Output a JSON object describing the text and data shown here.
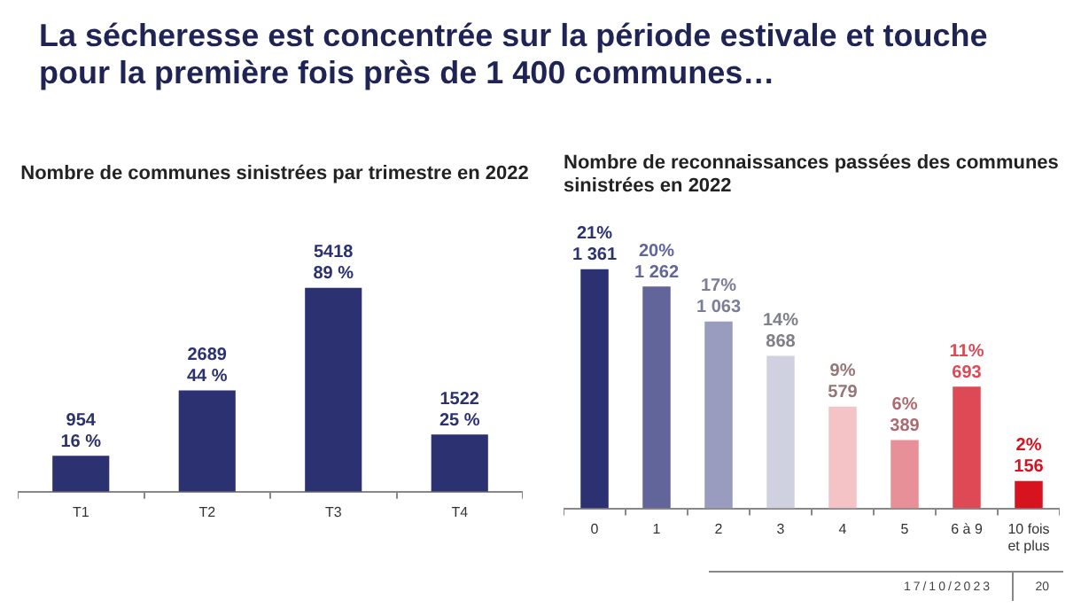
{
  "chart_data": [
    {
      "type": "bar",
      "title": "La sécheresse est concentrée sur la période estivale et touche pour la première fois près de 1 400 communes…",
      "subtitle": "Nombre de communes sinistrées par trimestre en 2022",
      "categories": [
        "T1",
        "T2",
        "T3",
        "T4"
      ],
      "values": [
        954,
        2689,
        5418,
        1522
      ],
      "color": "#2b3171",
      "value_labels": [
        "954\n16 %",
        "2689\n44 %",
        "5418\n89 %",
        "1522\n25 %"
      ],
      "tick_labels": "x"
    },
    {
      "type": "bar",
      "title": "Nombre de reconnaissances passées des communes sinistrées en 2022",
      "categories": [
        "0",
        "1",
        "2",
        "3",
        "4",
        "5",
        "6 à 9",
        "10 fois et plus"
      ],
      "values": [
        1361,
        1262,
        1063,
        868,
        579,
        389,
        693,
        156
      ],
      "colors": [
        "#2b3171",
        "#62659a",
        "#9a9cbf",
        "#cfd0e0",
        "#f3c3c6",
        "#e89097",
        "#dd4a56",
        "#d6131f"
      ],
      "value_labels": [
        "21%\n1 361",
        "20%\n1 262",
        "17%\n1 063",
        "14%\n868",
        "9%\n579",
        "6%\n389",
        "11%\n693",
        "2%\n156"
      ],
      "tick_labels": "x",
      "annotations": [
        "17/10/2023",
        "20"
      ]
    }
  ]
}
